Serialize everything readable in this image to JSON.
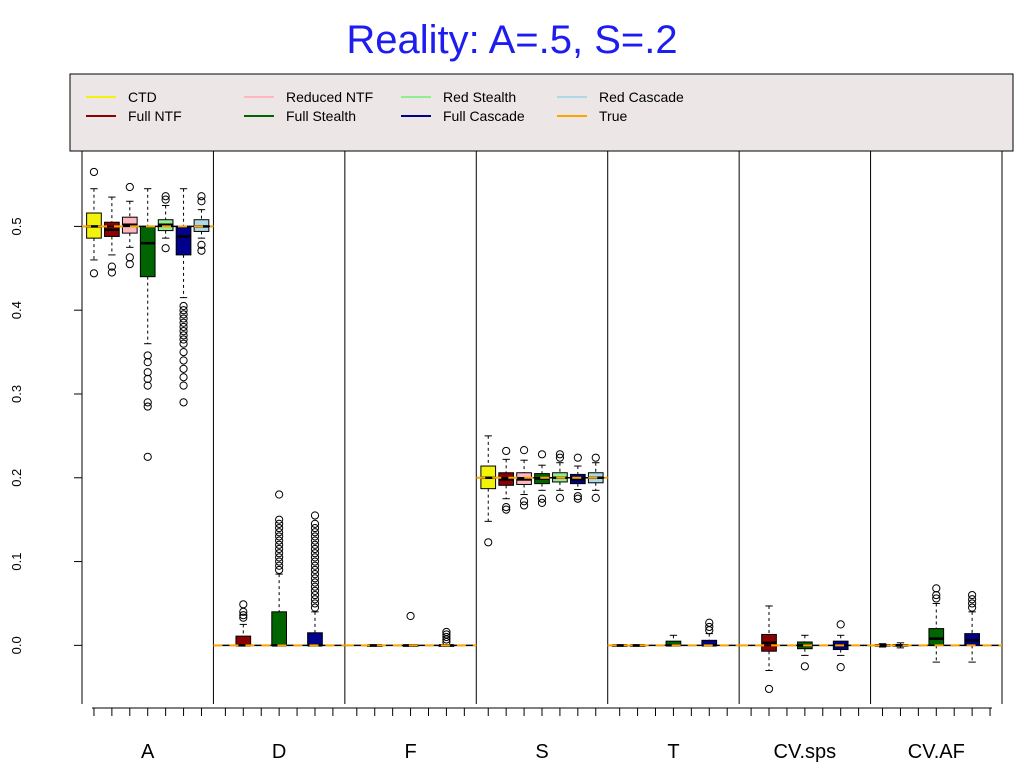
{
  "chart_data": {
    "type": "boxplot",
    "title": "Reality: A=.5, S=.2",
    "xlabel": "",
    "ylabel": "",
    "ylim": [
      -0.07,
      0.59
    ],
    "yticks": [
      0.0,
      0.1,
      0.2,
      0.3,
      0.4,
      0.5
    ],
    "ytick_labels": [
      "0.0",
      "0.1",
      "0.2",
      "0.3",
      "0.4",
      "0.5"
    ],
    "grid": false,
    "legend_position": "top",
    "categories": [
      "A",
      "D",
      "F",
      "S",
      "T",
      "CV.sps",
      "CV.AF"
    ],
    "true_values": [
      0.5,
      0.0,
      0.0,
      0.2,
      0.0,
      0.0,
      0.0
    ],
    "series": [
      {
        "name": "CTD",
        "color": "#f2f20a",
        "boxes": [
          {
            "min": 0.46,
            "q1": 0.486,
            "median": 0.5,
            "q3": 0.516,
            "max": 0.545,
            "outliers": [
              0.565,
              0.444
            ]
          },
          null,
          null,
          {
            "min": 0.148,
            "q1": 0.187,
            "median": 0.2,
            "q3": 0.214,
            "max": 0.25,
            "outliers": [
              0.123
            ]
          },
          {
            "min": 0.0,
            "q1": 0.0,
            "median": 0.0,
            "q3": 0.0,
            "max": 0.0,
            "outliers": []
          },
          null,
          {
            "min": -0.002,
            "q1": -0.001,
            "median": 0.0,
            "q3": 0.001,
            "max": 0.002,
            "outliers": []
          }
        ]
      },
      {
        "name": "Full NTF",
        "color": "#8b0000",
        "boxes": [
          {
            "min": 0.466,
            "q1": 0.488,
            "median": 0.496,
            "q3": 0.505,
            "max": 0.535,
            "outliers": [
              0.452,
              0.445
            ]
          },
          {
            "min": 0.0,
            "q1": 0.0,
            "median": 0.0,
            "q3": 0.011,
            "max": 0.025,
            "outliers": [
              0.033,
              0.036,
              0.04,
              0.049
            ]
          },
          {
            "min": 0.0,
            "q1": 0.0,
            "median": 0.0,
            "q3": 0.0,
            "max": 0.0,
            "outliers": []
          },
          {
            "min": 0.175,
            "q1": 0.191,
            "median": 0.198,
            "q3": 0.206,
            "max": 0.222,
            "outliers": [
              0.232,
              0.165,
              0.162
            ]
          },
          {
            "min": 0.0,
            "q1": 0.0,
            "median": 0.0,
            "q3": 0.0,
            "max": 0.0,
            "outliers": []
          },
          {
            "min": -0.03,
            "q1": -0.007,
            "median": 0.003,
            "q3": 0.013,
            "max": 0.047,
            "outliers": [
              -0.052
            ]
          },
          {
            "min": -0.003,
            "q1": -0.001,
            "median": 0.0,
            "q3": 0.001,
            "max": 0.003,
            "outliers": []
          }
        ]
      },
      {
        "name": "Reduced NTF",
        "color": "#ffb6c1",
        "boxes": [
          {
            "min": 0.475,
            "q1": 0.492,
            "median": 0.502,
            "q3": 0.511,
            "max": 0.53,
            "outliers": [
              0.547,
              0.463,
              0.455
            ]
          },
          null,
          null,
          {
            "min": 0.18,
            "q1": 0.192,
            "median": 0.198,
            "q3": 0.206,
            "max": 0.221,
            "outliers": [
              0.233,
              0.172,
              0.167
            ]
          },
          null,
          null,
          null
        ]
      },
      {
        "name": "Full Stealth",
        "color": "#006400",
        "boxes": [
          {
            "min": 0.36,
            "q1": 0.44,
            "median": 0.48,
            "q3": 0.5,
            "max": 0.545,
            "outliers": [
              0.346,
              0.338,
              0.326,
              0.318,
              0.31,
              0.29,
              0.285,
              0.225
            ]
          },
          {
            "min": 0.0,
            "q1": 0.0,
            "median": 0.0,
            "q3": 0.04,
            "max": 0.085,
            "outliers": [
              0.09,
              0.095,
              0.1,
              0.105,
              0.11,
              0.115,
              0.12,
              0.125,
              0.13,
              0.135,
              0.14,
              0.145,
              0.15,
              0.18
            ]
          },
          {
            "min": 0.0,
            "q1": 0.0,
            "median": 0.0,
            "q3": 0.0,
            "max": 0.0,
            "outliers": [
              0.035
            ]
          },
          {
            "min": 0.185,
            "q1": 0.193,
            "median": 0.199,
            "q3": 0.205,
            "max": 0.215,
            "outliers": [
              0.228,
              0.175,
              0.17
            ]
          },
          {
            "min": 0.0,
            "q1": 0.0,
            "median": 0.0,
            "q3": 0.005,
            "max": 0.012,
            "outliers": []
          },
          {
            "min": -0.012,
            "q1": -0.004,
            "median": 0.0,
            "q3": 0.004,
            "max": 0.012,
            "outliers": [
              -0.025
            ]
          },
          {
            "min": -0.02,
            "q1": 0.0,
            "median": 0.008,
            "q3": 0.02,
            "max": 0.05,
            "outliers": [
              0.056,
              0.06,
              0.068
            ]
          }
        ]
      },
      {
        "name": "Red Stealth",
        "color": "#90ee90",
        "boxes": [
          {
            "min": 0.486,
            "q1": 0.495,
            "median": 0.502,
            "q3": 0.508,
            "max": 0.525,
            "outliers": [
              0.532,
              0.536,
              0.474
            ]
          },
          null,
          null,
          {
            "min": 0.185,
            "q1": 0.195,
            "median": 0.2,
            "q3": 0.206,
            "max": 0.218,
            "outliers": [
              0.228,
              0.224,
              0.176
            ]
          },
          null,
          null,
          null
        ]
      },
      {
        "name": "Full Cascade",
        "color": "#00008b",
        "boxes": [
          {
            "min": 0.415,
            "q1": 0.466,
            "median": 0.488,
            "q3": 0.5,
            "max": 0.545,
            "outliers": [
              0.405,
              0.4,
              0.395,
              0.39,
              0.385,
              0.38,
              0.375,
              0.37,
              0.365,
              0.36,
              0.35,
              0.34,
              0.33,
              0.32,
              0.31,
              0.29
            ]
          },
          {
            "min": 0.0,
            "q1": 0.0,
            "median": 0.0,
            "q3": 0.015,
            "max": 0.04,
            "outliers": [
              0.045,
              0.05,
              0.055,
              0.06,
              0.065,
              0.07,
              0.075,
              0.08,
              0.085,
              0.09,
              0.095,
              0.1,
              0.105,
              0.11,
              0.115,
              0.12,
              0.125,
              0.13,
              0.135,
              0.14,
              0.145,
              0.155
            ]
          },
          {
            "min": 0.0,
            "q1": 0.0,
            "median": 0.0,
            "q3": 0.0,
            "max": 0.0,
            "outliers": [
              0.004,
              0.007,
              0.01,
              0.013,
              0.016
            ]
          },
          {
            "min": 0.186,
            "q1": 0.193,
            "median": 0.198,
            "q3": 0.204,
            "max": 0.214,
            "outliers": [
              0.224,
              0.178,
              0.175
            ]
          },
          {
            "min": 0.0,
            "q1": 0.0,
            "median": 0.0,
            "q3": 0.006,
            "max": 0.014,
            "outliers": [
              0.018,
              0.022,
              0.027
            ]
          },
          {
            "min": -0.012,
            "q1": -0.005,
            "median": 0.0,
            "q3": 0.005,
            "max": 0.012,
            "outliers": [
              0.025,
              -0.026
            ]
          },
          {
            "min": -0.02,
            "q1": 0.0,
            "median": 0.006,
            "q3": 0.014,
            "max": 0.04,
            "outliers": [
              0.045,
              0.05,
              0.055,
              0.06
            ]
          }
        ]
      },
      {
        "name": "Red Cascade",
        "color": "#add8e6",
        "boxes": [
          {
            "min": 0.486,
            "q1": 0.494,
            "median": 0.5,
            "q3": 0.508,
            "max": 0.52,
            "outliers": [
              0.53,
              0.536,
              0.478,
              0.471
            ]
          },
          null,
          null,
          {
            "min": 0.185,
            "q1": 0.194,
            "median": 0.2,
            "q3": 0.206,
            "max": 0.218,
            "outliers": [
              0.224,
              0.176
            ]
          },
          null,
          null,
          null
        ]
      },
      {
        "name": "True",
        "color": "#ffa500"
      }
    ]
  }
}
